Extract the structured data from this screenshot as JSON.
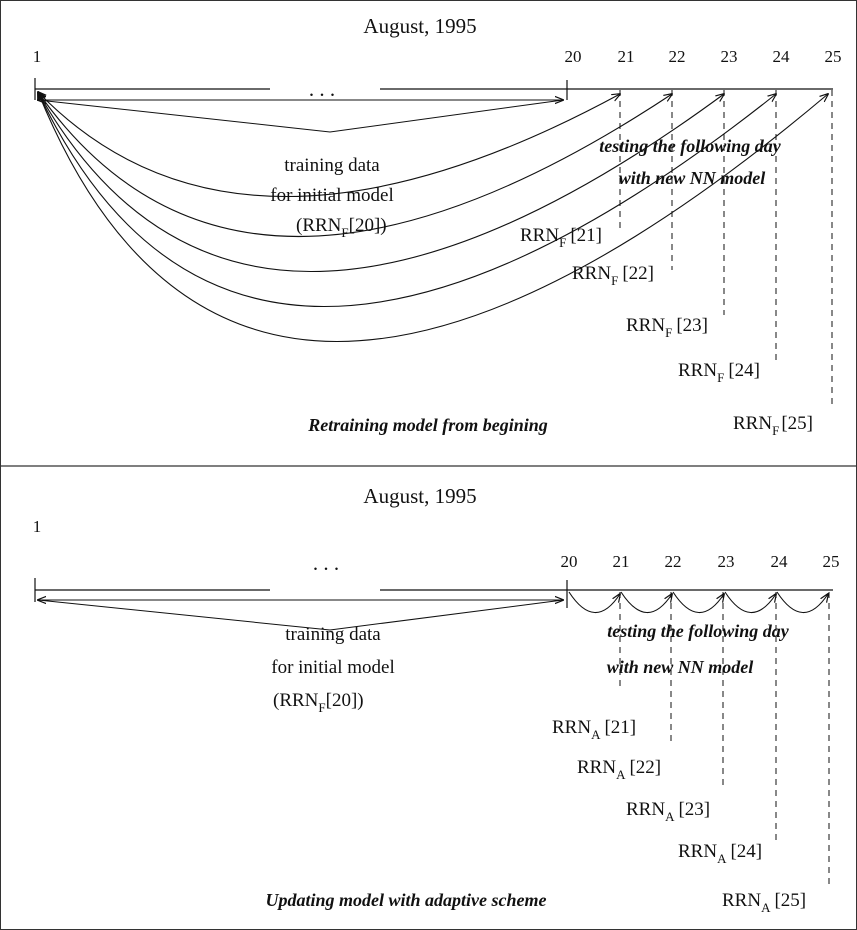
{
  "panels": [
    {
      "id": "retrain",
      "title": "August,  1995",
      "days": [
        "1",
        "20",
        "21",
        "22",
        "23",
        "24",
        "25"
      ],
      "ellipsis": ". . .",
      "training_lines": [
        "training data",
        "for initial model",
        "(RRN",
        "F",
        "[20])"
      ],
      "testing_lines": [
        "testing the following day",
        "with new NN model"
      ],
      "rrn_prefix": "RRN",
      "rrn_sub": "F",
      "rrn_days": [
        "[21]",
        "[22]",
        "[23]",
        "[24]",
        "[25]"
      ],
      "caption": "Retraining model from begining"
    },
    {
      "id": "adaptive",
      "title": "August,  1995",
      "days": [
        "1",
        "20",
        "21",
        "22",
        "23",
        "24",
        "25"
      ],
      "ellipsis": ". . .",
      "training_lines": [
        "training data",
        "for initial model",
        "(RRN",
        "F",
        "[20])"
      ],
      "testing_lines": [
        "testing the following day",
        "with new NN model"
      ],
      "rrn_prefix": "RRN",
      "rrn_sub": "A",
      "rrn_days": [
        "[21]",
        "[22]",
        "[23]",
        "[24]",
        "[25]"
      ],
      "caption": "Updating model with adaptive scheme"
    }
  ]
}
